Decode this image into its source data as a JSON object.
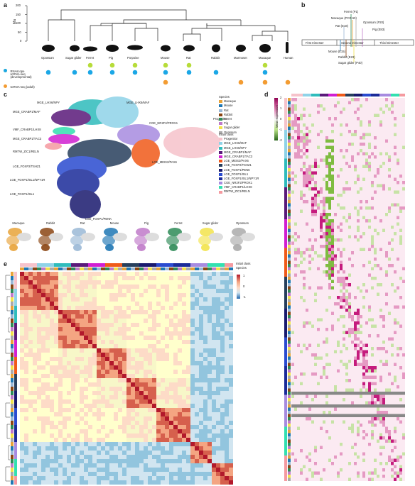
{
  "panels": {
    "a": "a",
    "b": "b",
    "c": "c",
    "d": "d",
    "e": "e"
  },
  "panel_a": {
    "yaxis_label": "Ma",
    "yticks": [
      "200",
      "150",
      "100",
      "50",
      "0"
    ],
    "species": [
      "Opossum",
      "Sugar glider",
      "Ferret",
      "Pig",
      "Porpoise",
      "Mouse",
      "Rat",
      "Rabbit",
      "Marmoset",
      "Macaque",
      "Human"
    ],
    "methods": [
      {
        "label": "RNAscope",
        "color": "#b7dc3a",
        "present": [
          false,
          false,
          true,
          true,
          true,
          true,
          true,
          false,
          false,
          true,
          false
        ]
      },
      {
        "label": "scRNA-seq (developmental)",
        "color": "#1ba7e6",
        "present": [
          true,
          true,
          true,
          true,
          true,
          true,
          true,
          true,
          false,
          true,
          false
        ]
      },
      {
        "label": "scRNA-seq (adult)",
        "color": "#f39c32",
        "present": [
          false,
          false,
          false,
          false,
          false,
          true,
          false,
          false,
          true,
          true,
          true
        ]
      }
    ]
  },
  "panel_b": {
    "annotations": [
      "Ferret (P1)",
      "Macaque (PCD 60)",
      "Opossum (P20)",
      "Rat (E18)",
      "Pig (E83)",
      "Mouse (E15)",
      "Rabbit (E23)",
      "Sugar glider (P40)"
    ],
    "trimesters": [
      "First trimester",
      "Second trimester",
      "Third trimester"
    ]
  },
  "panel_c": {
    "cluster_labels": [
      "MGE_LHX6/NPY",
      "MGE_LHX6/MAF",
      "MGE_CRABP1/MAF",
      "VMF_CRABP1/LHX8",
      "CGE_NR2F2/PROX1",
      "Progenitor",
      "MGE_CRABP1/TAC3",
      "RMTW_ZIC1/RELN",
      "LGE_FOXP2/TSHZ1",
      "LGE_MEIS2/PAX6",
      "LGE_FOXP1/ISL1/NPY1R",
      "LGE_FOXP1/ISL1",
      "LGE_FOXP1/PENK"
    ],
    "species_title": "Species",
    "species": [
      {
        "name": "Macaque",
        "color": "#e8a33a"
      },
      {
        "name": "Mouse",
        "color": "#1f77b4"
      },
      {
        "name": "Rat",
        "color": "#9ab8d6"
      },
      {
        "name": "Rabbit",
        "color": "#8b4513"
      },
      {
        "name": "Ferret",
        "color": "#2e8b57"
      },
      {
        "name": "Pig",
        "color": "#c07ac9"
      },
      {
        "name": "Sugar glider",
        "color": "#f2e34b"
      },
      {
        "name": "Opossum",
        "color": "#aaaaaa"
      }
    ],
    "class_title": "Initial class",
    "classes": [
      {
        "name": "Progenitor",
        "color": "#f6c3cb"
      },
      {
        "name": "MGE_LHX6/MAF",
        "color": "#8fd3e8"
      },
      {
        "name": "MGE_LHX6/NPY",
        "color": "#2fbcbc"
      },
      {
        "name": "MGE_CRABP1/MAF",
        "color": "#5a1a7a"
      },
      {
        "name": "MGE_CRABP1/TAC3",
        "color": "#d11fd1"
      },
      {
        "name": "LGE_MEIS2/PAX6",
        "color": "#f05a1a"
      },
      {
        "name": "LGE_FOXP2/TSHZ1",
        "color": "#273f5c"
      },
      {
        "name": "LGE_FOXP1/PENK",
        "color": "#1a1a6e"
      },
      {
        "name": "LGE_FOXP1/ISL1",
        "color": "#2a4bd0"
      },
      {
        "name": "LGE_FOXP1/ISL1/NPY1R",
        "color": "#1b2b99"
      },
      {
        "name": "CGE_NR2F2/PROX1",
        "color": "#a78be0"
      },
      {
        "name": "VMF_CRABP1/LHX8",
        "color": "#32e0b0"
      },
      {
        "name": "RMTW_ZIC1/RELN",
        "color": "#f59aa0"
      }
    ],
    "mini_umaps": [
      "Macaque",
      "Rabbit",
      "Rat",
      "Mouse",
      "Pig",
      "Ferret",
      "Sugar glider",
      "Opossum"
    ]
  },
  "panel_d": {
    "colorbar_title": "Mean expression",
    "colorbar_ticks": [
      "2",
      "1",
      "0",
      "-1",
      "-2"
    ]
  },
  "panel_e": {
    "legend_initial_class": "Initial class",
    "legend_species": "Species",
    "colorbar_ticks": [
      "1",
      "0",
      "-1"
    ]
  },
  "colors": {
    "heat_high": "#b2182b",
    "heat_low": "#2166ac",
    "magenta": "#c51b7d",
    "green": "#4d9221"
  }
}
